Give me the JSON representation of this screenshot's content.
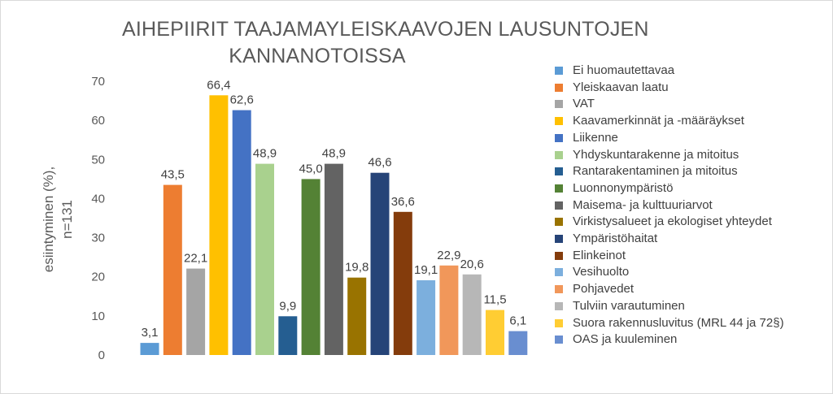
{
  "chart_data": {
    "type": "bar",
    "title_lines": [
      "AIHEPIIRIT TAAJAMAYLEISKAAVOJEN LAUSUNTOJEN",
      "KANNANOTOISSA"
    ],
    "ylabel_lines": [
      "esiintyminen (%),",
      "n=131"
    ],
    "xlabel": "",
    "ylim": [
      0,
      70
    ],
    "yticks": [
      0,
      10,
      20,
      30,
      40,
      50,
      60,
      70
    ],
    "grid": false,
    "legend_position": "right",
    "series": [
      {
        "name": "Ei huomautettavaa",
        "value": 3.1,
        "label": "3,1",
        "color": "#5b9bd5"
      },
      {
        "name": "Yleiskaavan laatu",
        "value": 43.5,
        "label": "43,5",
        "color": "#ed7d31"
      },
      {
        "name": "VAT",
        "value": 22.1,
        "label": "22,1",
        "color": "#a5a5a5"
      },
      {
        "name": "Kaavamerkinnät ja -määräykset",
        "value": 66.4,
        "label": "66,4",
        "color": "#ffc000"
      },
      {
        "name": "Liikenne",
        "value": 62.6,
        "label": "62,6",
        "color": "#4472c4"
      },
      {
        "name": "Yhdyskuntarakenne ja mitoitus",
        "value": 48.9,
        "label": "48,9",
        "color": "#a9d18e"
      },
      {
        "name": "Rantarakentaminen ja mitoitus",
        "value": 9.9,
        "label": "9,9",
        "color": "#255e91"
      },
      {
        "name": "Luonnonympäristö",
        "value": 45.0,
        "label": "45,0",
        "color": "#548235"
      },
      {
        "name": "Maisema- ja kulttuuriarvot",
        "value": 48.9,
        "label": "48,9",
        "color": "#636363"
      },
      {
        "name": "Virkistysalueet ja ekologiset yhteydet",
        "value": 19.8,
        "label": "19,8",
        "color": "#997300"
      },
      {
        "name": "Ympäristöhaitat",
        "value": 46.6,
        "label": "46,6",
        "color": "#264478"
      },
      {
        "name": "Elinkeinot",
        "value": 36.6,
        "label": "36,6",
        "color": "#843c0c"
      },
      {
        "name": "Vesihuolto",
        "value": 19.1,
        "label": "19,1",
        "color": "#7cafdd"
      },
      {
        "name": "Pohjavedet",
        "value": 22.9,
        "label": "22,9",
        "color": "#f1975a"
      },
      {
        "name": "Tulviin varautuminen",
        "value": 20.6,
        "label": "20,6",
        "color": "#b7b7b7"
      },
      {
        "name": "Suora rakennusluvitus (MRL 44 ja 72§)",
        "value": 11.5,
        "label": "11,5",
        "color": "#ffcd33"
      },
      {
        "name": "OAS ja kuuleminen",
        "value": 6.1,
        "label": "6,1",
        "color": "#698ed0"
      }
    ]
  }
}
